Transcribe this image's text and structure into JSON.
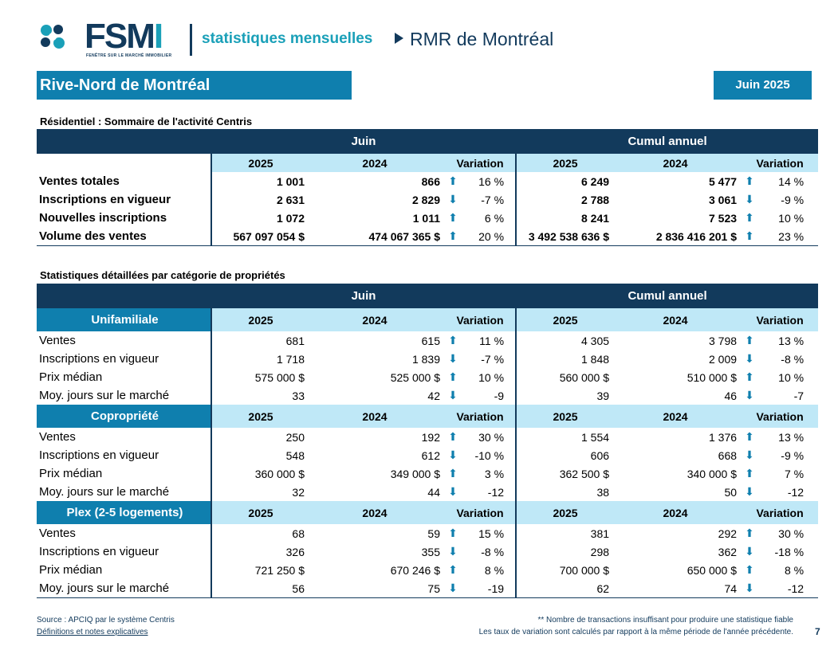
{
  "header": {
    "logo_text": "FSMI",
    "logo_tagline": "FENÊTRE SUR LE MARCHÉ IMMOBILIER",
    "stats_title": "statistiques mensuelles",
    "region_area": "RMR de Montréal",
    "region_title": "Rive-Nord de Montréal",
    "period": "Juin 2025"
  },
  "summary": {
    "title": "Résidentiel : Sommaire de l'activité Centris",
    "group_month": "Juin",
    "group_ytd": "Cumul annuel",
    "col_2025": "2025",
    "col_2024": "2024",
    "col_var": "Variation",
    "rows": [
      {
        "label": "Ventes totales",
        "m25": "1 001",
        "m24": "866",
        "m_dir": "up",
        "m_var": "16 %",
        "y25": "6 249",
        "y24": "5 477",
        "y_dir": "up",
        "y_var": "14 %"
      },
      {
        "label": "Inscriptions en vigueur",
        "m25": "2 631",
        "m24": "2 829",
        "m_dir": "down",
        "m_var": "-7 %",
        "y25": "2 788",
        "y24": "3 061",
        "y_dir": "down",
        "y_var": "-9 %"
      },
      {
        "label": "Nouvelles inscriptions",
        "m25": "1 072",
        "m24": "1 011",
        "m_dir": "up",
        "m_var": "6 %",
        "y25": "8 241",
        "y24": "7 523",
        "y_dir": "up",
        "y_var": "10 %"
      },
      {
        "label": "Volume des ventes",
        "m25": "567 097 054  $",
        "m24": "474 067 365  $",
        "m_dir": "up",
        "m_var": "20 %",
        "y25": "3 492 538 636  $",
        "y24": "2 836 416 201  $",
        "y_dir": "up",
        "y_var": "23 %"
      }
    ]
  },
  "detail": {
    "title": "Statistiques détaillées par catégorie de propriétés",
    "group_month": "Juin",
    "group_ytd": "Cumul annuel",
    "col_2025": "2025",
    "col_2024": "2024",
    "col_var": "Variation",
    "categories": [
      {
        "name": "Unifamiliale",
        "rows": [
          {
            "label": "Ventes",
            "m25": "681",
            "m24": "615",
            "m_dir": "up",
            "m_var": "11 %",
            "y25": "4 305",
            "y24": "3 798",
            "y_dir": "up",
            "y_var": "13 %"
          },
          {
            "label": "Inscriptions en vigueur",
            "m25": "1 718",
            "m24": "1 839",
            "m_dir": "down",
            "m_var": "-7 %",
            "y25": "1 848",
            "y24": "2 009",
            "y_dir": "down",
            "y_var": "-8 %"
          },
          {
            "label": "Prix médian",
            "m25": "575 000 $",
            "m24": "525 000 $",
            "m_dir": "up",
            "m_var": "10 %",
            "y25": "560 000 $",
            "y24": "510 000 $",
            "y_dir": "up",
            "y_var": "10 %"
          },
          {
            "label": "Moy. jours sur le marché",
            "m25": "33",
            "m24": "42",
            "m_dir": "down",
            "m_var": "-9",
            "y25": "39",
            "y24": "46",
            "y_dir": "down",
            "y_var": "-7"
          }
        ]
      },
      {
        "name": "Copropriété",
        "rows": [
          {
            "label": "Ventes",
            "m25": "250",
            "m24": "192",
            "m_dir": "up",
            "m_var": "30 %",
            "y25": "1 554",
            "y24": "1 376",
            "y_dir": "up",
            "y_var": "13 %"
          },
          {
            "label": "Inscriptions en vigueur",
            "m25": "548",
            "m24": "612",
            "m_dir": "down",
            "m_var": "-10 %",
            "y25": "606",
            "y24": "668",
            "y_dir": "down",
            "y_var": "-9 %"
          },
          {
            "label": "Prix médian",
            "m25": "360 000 $",
            "m24": "349 000 $",
            "m_dir": "up",
            "m_var": "3 %",
            "y25": "362 500 $",
            "y24": "340 000 $",
            "y_dir": "up",
            "y_var": "7 %"
          },
          {
            "label": "Moy. jours sur le marché",
            "m25": "32",
            "m24": "44",
            "m_dir": "down",
            "m_var": "-12",
            "y25": "38",
            "y24": "50",
            "y_dir": "down",
            "y_var": "-12"
          }
        ]
      },
      {
        "name": "Plex (2-5 logements)",
        "rows": [
          {
            "label": "Ventes",
            "m25": "68",
            "m24": "59",
            "m_dir": "up",
            "m_var": "15 %",
            "y25": "381",
            "y24": "292",
            "y_dir": "up",
            "y_var": "30 %"
          },
          {
            "label": "Inscriptions en vigueur",
            "m25": "326",
            "m24": "355",
            "m_dir": "down",
            "m_var": "-8 %",
            "y25": "298",
            "y24": "362",
            "y_dir": "down",
            "y_var": "-18 %"
          },
          {
            "label": "Prix médian",
            "m25": "721 250 $",
            "m24": "670 246 $",
            "m_dir": "up",
            "m_var": "8 %",
            "y25": "700 000 $",
            "y24": "650 000 $",
            "y_dir": "up",
            "y_var": "8 %"
          },
          {
            "label": "Moy. jours sur le marché",
            "m25": "56",
            "m24": "75",
            "m_dir": "down",
            "m_var": "-19",
            "y25": "62",
            "y24": "74",
            "y_dir": "down",
            "y_var": "-12"
          }
        ]
      }
    ]
  },
  "footer": {
    "source": "Source : APCIQ par le système Centris",
    "definitions_link": "Définitions et notes explicatives",
    "note1": "** Nombre de transactions insuffisant pour produire une statistique fiable",
    "note2": "Les taux de variation sont calculés par rapport à la même période de l'année précédente.",
    "page_number": "7"
  },
  "colors": {
    "navy": "#123a5c",
    "teal": "#0f7fae",
    "light": "#bfe8f7",
    "accent": "#1aa0b8"
  },
  "icons": {
    "up": "arrow-up-icon",
    "down": "arrow-down-icon"
  }
}
